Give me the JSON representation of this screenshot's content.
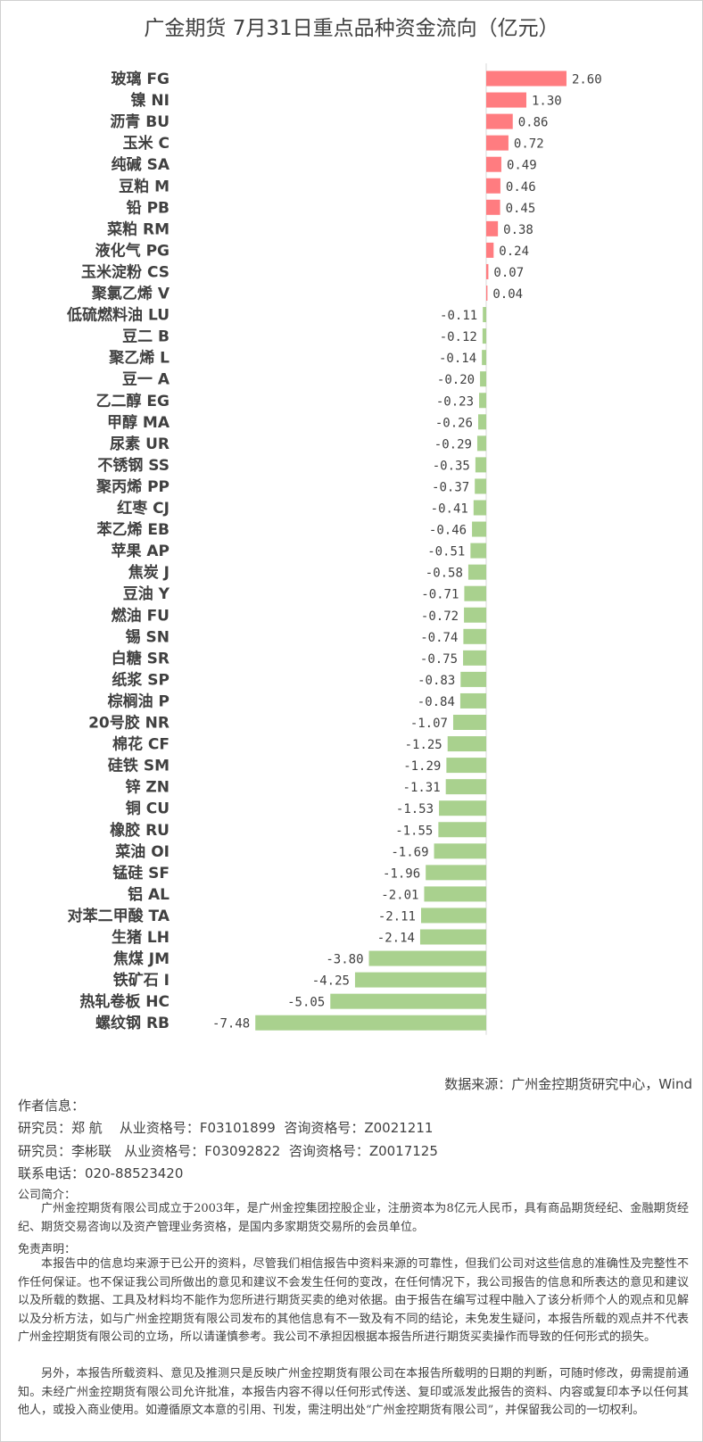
{
  "chart_data": {
    "type": "bar",
    "orientation": "horizontal",
    "title": "广金期货 7月31日重点品种资金流向（亿元）",
    "categories": [
      "玻璃 FG",
      "镍 NI",
      "沥青 BU",
      "玉米 C",
      "纯碱 SA",
      "豆粕 M",
      "铅 PB",
      "菜粕 RM",
      "液化气 PG",
      "玉米淀粉 CS",
      "聚氯乙烯 V",
      "低硫燃料油 LU",
      "豆二 B",
      "聚乙烯 L",
      "豆一 A",
      "乙二醇 EG",
      "甲醇 MA",
      "尿素 UR",
      "不锈钢 SS",
      "聚丙烯 PP",
      "红枣 CJ",
      "苯乙烯 EB",
      "苹果 AP",
      "焦炭 J",
      "豆油 Y",
      "燃油 FU",
      "锡 SN",
      "白糖 SR",
      "纸浆 SP",
      "棕榈油 P",
      "20号胶 NR",
      "棉花 CF",
      "硅铁 SM",
      "锌 ZN",
      "铜 CU",
      "橡胶 RU",
      "菜油 OI",
      "锰硅 SF",
      "铝 AL",
      "对苯二甲酸 TA",
      "生猪 LH",
      "焦煤 JM",
      "铁矿石 I",
      "热轧卷板 HC",
      "螺纹钢 RB"
    ],
    "values": [
      2.6,
      1.3,
      0.86,
      0.72,
      0.49,
      0.46,
      0.45,
      0.38,
      0.24,
      0.07,
      0.04,
      -0.11,
      -0.12,
      -0.14,
      -0.2,
      -0.23,
      -0.26,
      -0.29,
      -0.35,
      -0.37,
      -0.41,
      -0.46,
      -0.51,
      -0.58,
      -0.71,
      -0.72,
      -0.74,
      -0.75,
      -0.83,
      -0.84,
      -1.07,
      -1.25,
      -1.29,
      -1.31,
      -1.53,
      -1.55,
      -1.69,
      -1.96,
      -2.01,
      -2.11,
      -2.14,
      -3.8,
      -4.25,
      -5.05,
      -7.48
    ],
    "xlim": [
      -7.48,
      2.6
    ],
    "grid": false,
    "colors": {
      "positive": "#ff7c80",
      "negative": "#a9d18e"
    }
  },
  "footer": {
    "source": "数据来源：广州金控期货研究中心，Wind",
    "author_heading": "作者信息：",
    "researcher1": "研究员：郑 航    从业资格号：F03101899  咨询资格号：Z0021211",
    "researcher2": "研究员：李彬联   从业资格号：F03092822  咨询资格号：Z0017125",
    "phone": "联系电话：020-88523420",
    "company_heading": "公司简介：",
    "company_text": "广州金控期货有限公司成立于2003年，是广州金控集团控股企业，注册资本为8亿元人民币，具有商品期货经纪、金融期货经纪、期货交易咨询以及资产管理业务资格，是国内多家期货交易所的会员单位。",
    "disclaimer_heading": "免责声明：",
    "disclaimer_p1": "本报告中的信息均来源于已公开的资料，尽管我们相信报告中资料来源的可靠性，但我们公司对这些信息的准确性及完整性不作任何保证。也不保证我公司所做出的意见和建议不会发生任何的变改，在任何情况下，我公司报告的信息和所表达的意见和建议以及所载的数据、工具及材料均不能作为您所进行期货买卖的绝对依据。由于报告在编写过程中融入了该分析师个人的观点和见解以及分析方法，如与广州金控期货有限公司发布的其他信息有不一致及有不同的结论，未免发生疑问，本报告所载的观点并不代表广州金控期货有限公司的立场，所以请谨慎参考。我公司不承担因根据本报告所进行期货买卖操作而导致的任何形式的损失。",
    "disclaimer_p2": "另外，本报告所载资料、意见及推测只是反映广州金控期货有限公司在本报告所载明的日期的判断，可随时修改，毋需提前通知。未经广州金控期货有限公司允许批准，本报告内容不得以任何形式传送、复印或派发此报告的资料、内容或复印本予以任何其他人，或投入商业使用。如遵循原文本意的引用、刊发，需注明出处“广州金控期货有限公司”，并保留我公司的一切权利。"
  }
}
